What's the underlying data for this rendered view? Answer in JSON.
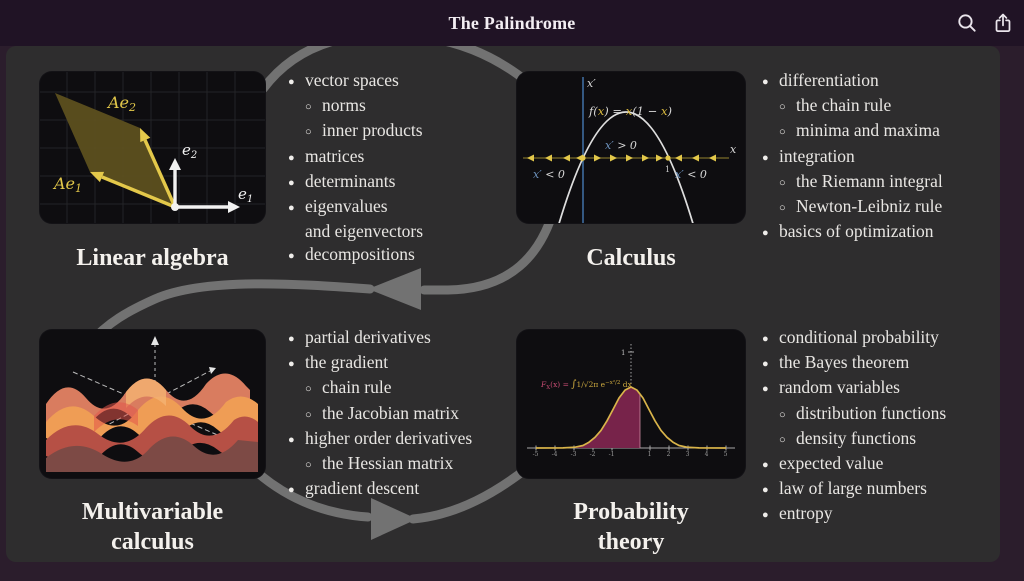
{
  "header": {
    "title": "The Palindrome",
    "icons": [
      {
        "name": "search-icon"
      },
      {
        "name": "share-icon"
      }
    ]
  },
  "palette": {
    "page_background": "#2b1d2c",
    "header_background": "#201325",
    "panel_background": "#2e2d2e",
    "card_background": "#0e0d10",
    "arrow_gray": "#727272",
    "text": "#e8e6e3",
    "gold": "#e3c84a",
    "axis_blue": "#3e6b9e",
    "curve_gold": "#d9b44a",
    "fill_maroon": "#77234a",
    "formula_pink": "#c94d74",
    "surface_orange": "#ef9d55",
    "surface_red": "#b65045"
  },
  "sections": [
    {
      "id": "linear-algebra",
      "title_lines": [
        "Linear algebra"
      ],
      "items": [
        {
          "m": "●",
          "t": "vector spaces",
          "lv": 0
        },
        {
          "m": "○",
          "t": "norms",
          "lv": 1
        },
        {
          "m": "○",
          "t": "inner products",
          "lv": 1
        },
        {
          "m": "●",
          "t": "matrices",
          "lv": 0
        },
        {
          "m": "●",
          "t": "determinants",
          "lv": 0
        },
        {
          "m": "●",
          "t": "eigenvalues",
          "lv": 0
        },
        {
          "m": "",
          "t": "and eigenvectors",
          "lv": 2
        },
        {
          "m": "●",
          "t": "decompositions",
          "lv": 0
        }
      ]
    },
    {
      "id": "calculus",
      "title_lines": [
        "Calculus"
      ],
      "items": [
        {
          "m": "●",
          "t": "differentiation",
          "lv": 0
        },
        {
          "m": "○",
          "t": "the chain rule",
          "lv": 1
        },
        {
          "m": "○",
          "t": "minima and maxima",
          "lv": 1
        },
        {
          "m": "●",
          "t": "integration",
          "lv": 0
        },
        {
          "m": "○",
          "t": "the Riemann integral",
          "lv": 1
        },
        {
          "m": "○",
          "t": "Newton-Leibniz rule",
          "lv": 1
        },
        {
          "m": "●",
          "t": "basics of optimization",
          "lv": 0
        }
      ]
    },
    {
      "id": "multivariable-calculus",
      "title_lines": [
        "Multivariable",
        "calculus"
      ],
      "items": [
        {
          "m": "●",
          "t": "partial derivatives",
          "lv": 0
        },
        {
          "m": "●",
          "t": "the gradient",
          "lv": 0
        },
        {
          "m": "○",
          "t": "chain rule",
          "lv": 1
        },
        {
          "m": "○",
          "t": "the Jacobian matrix",
          "lv": 1
        },
        {
          "m": "●",
          "t": "higher order derivatives",
          "lv": 0
        },
        {
          "m": "○",
          "t": "the Hessian matrix",
          "lv": 1
        },
        {
          "m": "●",
          "t": "gradient descent",
          "lv": 0
        }
      ]
    },
    {
      "id": "probability-theory",
      "title_lines": [
        "Probability",
        "theory"
      ],
      "items": [
        {
          "m": "●",
          "t": "conditional probability",
          "lv": 0
        },
        {
          "m": "●",
          "t": "the Bayes theorem",
          "lv": 0
        },
        {
          "m": "●",
          "t": "random variables",
          "lv": 0
        },
        {
          "m": "○",
          "t": "distribution functions",
          "lv": 1
        },
        {
          "m": "○",
          "t": "density functions",
          "lv": 1
        },
        {
          "m": "●",
          "t": "expected value",
          "lv": 0
        },
        {
          "m": "●",
          "t": "law of large numbers",
          "lv": 0
        },
        {
          "m": "●",
          "t": "entropy",
          "lv": 0
        }
      ]
    }
  ],
  "figures": {
    "linear_algebra": {
      "vectors": {
        "Ae2": [
          "Ae",
          "2"
        ],
        "Ae1": [
          "Ae",
          "1"
        ],
        "e2": [
          "e",
          "2"
        ],
        "e1": [
          "e",
          "1"
        ]
      }
    },
    "calculus": {
      "y_axis": "x′",
      "x_axis": "x",
      "curve_parts": [
        "f(",
        "x",
        ") = ",
        "x",
        "(1 − ",
        "x",
        ")"
      ],
      "pos_var": "x′",
      "pos_rest": " > 0",
      "neg_left_var": "x′",
      "neg_left_rest": " < 0",
      "neg_right_var": "x′",
      "neg_right_rest": " < 0",
      "tick_one": "1"
    },
    "probability": {
      "y_tick": "1",
      "formula": {
        "F": "F",
        "sub": "X",
        "args": "(x) = ",
        "integral": "∫",
        "body": "1/√2π e",
        "exp": "−x²/2",
        "dx": " dx"
      },
      "x_ticks": [
        "-5",
        "-4",
        "-3",
        "-2",
        "-1",
        "",
        "1",
        "2",
        "3",
        "4",
        "5"
      ]
    }
  }
}
